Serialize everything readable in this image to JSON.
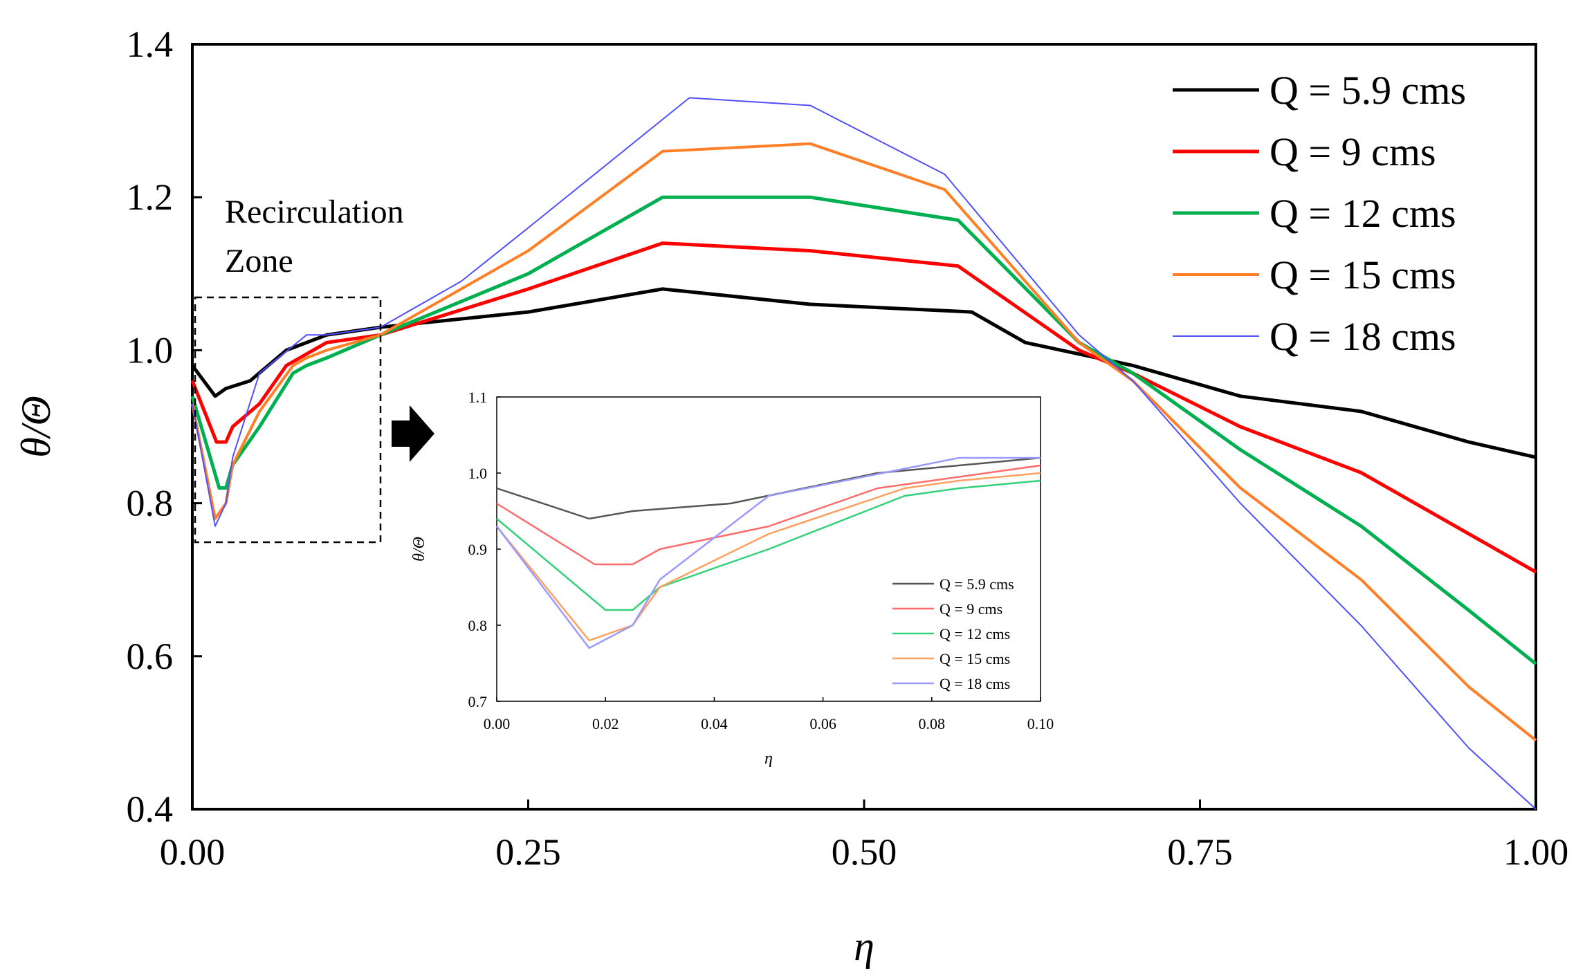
{
  "chart_data": [
    {
      "type": "line",
      "title": "",
      "xlabel": "η",
      "ylabel": "θ/Θ",
      "xlim": [
        0,
        1
      ],
      "ylim": [
        0.4,
        1.4
      ],
      "xticks": [
        "0.00",
        "0.25",
        "0.50",
        "0.75",
        "1.00"
      ],
      "yticks": [
        "0.4",
        "0.6",
        "0.8",
        "1.0",
        "1.2",
        "1.4"
      ],
      "legend_position": "top-right",
      "grid": false,
      "annotation": [
        "Recirculation",
        "Zone"
      ],
      "series": [
        {
          "name": "Q = 5.9 cms",
          "color": "#000000",
          "x": [
            0.0,
            0.017,
            0.025,
            0.043,
            0.07,
            0.1,
            0.14,
            0.25,
            0.35,
            0.46,
            0.58,
            0.62,
            0.7,
            0.78,
            0.87,
            0.95,
            1.0
          ],
          "y": [
            0.98,
            0.94,
            0.95,
            0.96,
            1.0,
            1.02,
            1.03,
            1.05,
            1.08,
            1.06,
            1.05,
            1.01,
            0.98,
            0.94,
            0.92,
            0.88,
            0.86
          ]
        },
        {
          "name": "Q = 9 cms",
          "color": "#ff0000",
          "x": [
            0.0,
            0.018,
            0.025,
            0.03,
            0.05,
            0.07,
            0.1,
            0.14,
            0.25,
            0.35,
            0.46,
            0.57,
            0.66,
            0.7,
            0.78,
            0.87,
            0.95,
            1.0
          ],
          "y": [
            0.96,
            0.88,
            0.88,
            0.9,
            0.93,
            0.98,
            1.01,
            1.02,
            1.08,
            1.14,
            1.13,
            1.11,
            1.0,
            0.97,
            0.9,
            0.84,
            0.76,
            0.71
          ]
        },
        {
          "name": "Q = 12 cms",
          "color": "#00b050",
          "x": [
            0.0,
            0.02,
            0.025,
            0.03,
            0.05,
            0.075,
            0.085,
            0.1,
            0.14,
            0.25,
            0.35,
            0.46,
            0.57,
            0.66,
            0.7,
            0.78,
            0.87,
            0.95,
            1.0
          ],
          "y": [
            0.94,
            0.82,
            0.82,
            0.85,
            0.9,
            0.97,
            0.98,
            0.99,
            1.02,
            1.1,
            1.2,
            1.2,
            1.17,
            1.01,
            0.97,
            0.87,
            0.77,
            0.66,
            0.59
          ]
        },
        {
          "name": "Q = 15 cms",
          "color": "#ff7f27",
          "x": [
            0.0,
            0.017,
            0.025,
            0.03,
            0.05,
            0.075,
            0.085,
            0.1,
            0.14,
            0.25,
            0.35,
            0.46,
            0.56,
            0.66,
            0.7,
            0.78,
            0.87,
            0.95,
            1.0
          ],
          "y": [
            0.93,
            0.78,
            0.8,
            0.85,
            0.92,
            0.98,
            0.99,
            1.0,
            1.02,
            1.13,
            1.26,
            1.27,
            1.21,
            1.01,
            0.96,
            0.82,
            0.7,
            0.56,
            0.49
          ]
        },
        {
          "name": "Q = 18 cms",
          "color": "#4f4fff",
          "x": [
            0.0,
            0.017,
            0.025,
            0.03,
            0.05,
            0.085,
            0.1,
            0.14,
            0.2,
            0.25,
            0.37,
            0.46,
            0.56,
            0.66,
            0.7,
            0.78,
            0.87,
            0.95,
            1.0
          ],
          "y": [
            0.93,
            0.77,
            0.8,
            0.86,
            0.97,
            1.02,
            1.02,
            1.03,
            1.09,
            1.16,
            1.33,
            1.32,
            1.23,
            1.02,
            0.96,
            0.8,
            0.64,
            0.48,
            0.4
          ]
        }
      ]
    },
    {
      "type": "line",
      "title": "",
      "xlabel": "η",
      "ylabel": "θ/Θ",
      "xlim": [
        0,
        0.1
      ],
      "ylim": [
        0.7,
        1.1
      ],
      "xticks": [
        "0.00",
        "0.02",
        "0.04",
        "0.06",
        "0.08",
        "0.10"
      ],
      "yticks": [
        "0.7",
        "0.8",
        "0.9",
        "1.0",
        "1.1"
      ],
      "legend_position": "bottom-right",
      "grid": false,
      "series": [
        {
          "name": "Q = 5.9 cms",
          "color": "#555555",
          "x": [
            0.0,
            0.017,
            0.025,
            0.043,
            0.07,
            0.1
          ],
          "y": [
            0.98,
            0.94,
            0.95,
            0.96,
            1.0,
            1.02
          ]
        },
        {
          "name": "Q = 9 cms",
          "color": "#ff6b6b",
          "x": [
            0.0,
            0.018,
            0.025,
            0.03,
            0.05,
            0.07,
            0.1
          ],
          "y": [
            0.96,
            0.88,
            0.88,
            0.9,
            0.93,
            0.98,
            1.01
          ]
        },
        {
          "name": "Q = 12 cms",
          "color": "#33d17a",
          "x": [
            0.0,
            0.02,
            0.025,
            0.03,
            0.05,
            0.075,
            0.085,
            0.1
          ],
          "y": [
            0.94,
            0.82,
            0.82,
            0.85,
            0.9,
            0.97,
            0.98,
            0.99
          ]
        },
        {
          "name": "Q = 15 cms",
          "color": "#ffa060",
          "x": [
            0.0,
            0.017,
            0.025,
            0.03,
            0.05,
            0.075,
            0.085,
            0.1
          ],
          "y": [
            0.93,
            0.78,
            0.8,
            0.85,
            0.92,
            0.98,
            0.99,
            1.0
          ]
        },
        {
          "name": "Q = 18 cms",
          "color": "#9a9aff",
          "x": [
            0.0,
            0.017,
            0.025,
            0.03,
            0.05,
            0.085,
            0.1
          ],
          "y": [
            0.93,
            0.77,
            0.8,
            0.86,
            0.97,
            1.02,
            1.02
          ]
        }
      ]
    }
  ]
}
